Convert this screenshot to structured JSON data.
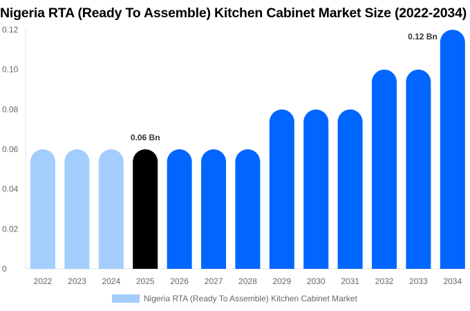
{
  "chart_data": {
    "type": "bar",
    "title": "Nigeria RTA (Ready To Assemble) Kitchen Cabinet Market Size (2022-2034)",
    "categories": [
      "2022",
      "2023",
      "2024",
      "2025",
      "2026",
      "2027",
      "2028",
      "2029",
      "2030",
      "2031",
      "2032",
      "2033",
      "2034"
    ],
    "series": [
      {
        "name": "Nigeria RTA (Ready To Assemble) Kitchen Cabinet Market",
        "values": [
          0.06,
          0.06,
          0.06,
          0.06,
          0.06,
          0.06,
          0.06,
          0.08,
          0.08,
          0.08,
          0.1,
          0.1,
          0.12
        ]
      }
    ],
    "ylim": [
      0,
      0.12
    ],
    "yticks": [
      "0",
      "0.02",
      "0.04",
      "0.06",
      "0.08",
      "0.10",
      "0.12"
    ],
    "data_labels": [
      {
        "category": "2025",
        "text": "0.06 Bn"
      },
      {
        "category": "2034",
        "text": "0.12 Bn"
      }
    ],
    "colors": {
      "historical": "#a3cdfd",
      "base_year": "#000000",
      "forecast": "#0066ff"
    },
    "base_year": "2025",
    "legend_position": "bottom",
    "grid": false
  }
}
